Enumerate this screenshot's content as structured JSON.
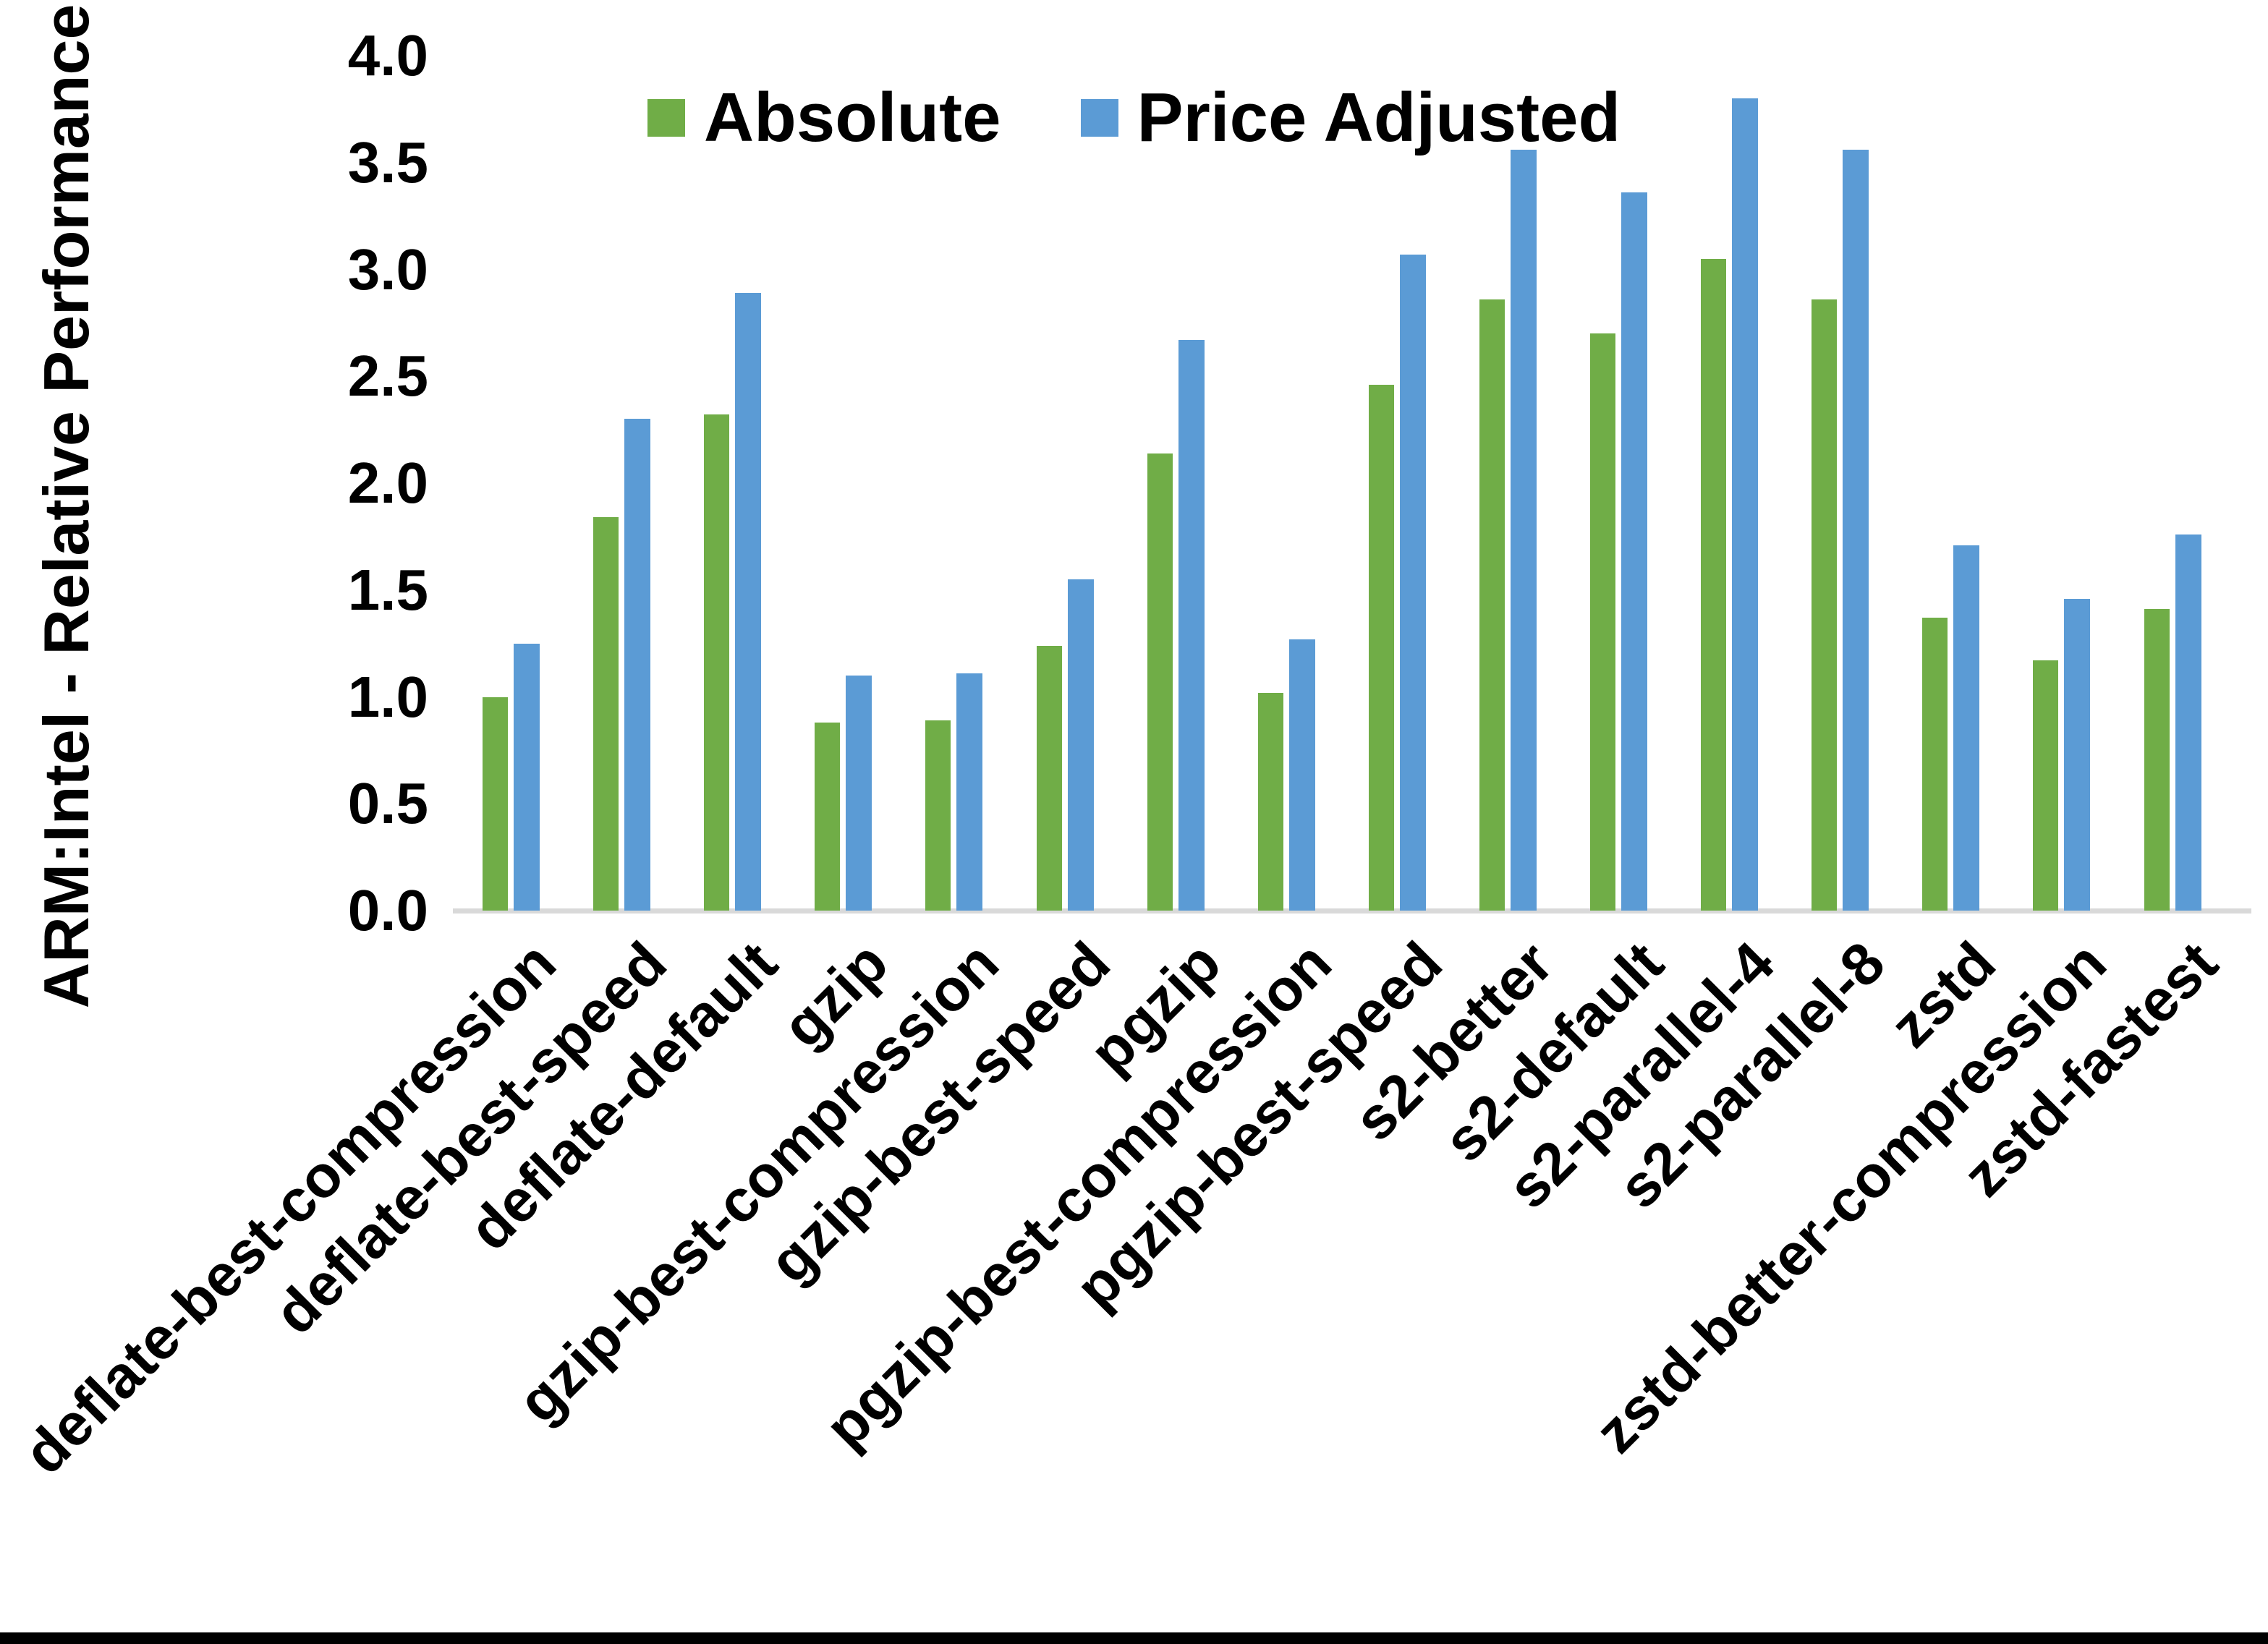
{
  "chart_data": {
    "type": "bar",
    "title": "",
    "xlabel": "",
    "ylabel": "ARM:Intel - Relative Performance",
    "ylim": [
      0.0,
      4.0
    ],
    "ytick_labels": [
      "0.0",
      "0.5",
      "1.0",
      "1.5",
      "2.0",
      "2.5",
      "3.0",
      "3.5",
      "4.0"
    ],
    "grid": false,
    "legend_position": "top-center",
    "categories": [
      "deflate-best-compression",
      "deflate-best-speed",
      "deflate-default",
      "gzip",
      "gzip-best-compression",
      "gzip-best-speed",
      "pgzip",
      "pgzip-best-compression",
      "pgzip-best-speed",
      "s2-better",
      "s2-default",
      "s2-parallel-4",
      "s2-parallel-8",
      "zstd",
      "zstd-better-compression",
      "zstd-fastest"
    ],
    "series": [
      {
        "name": "Absolute",
        "color": "#70AD47",
        "values": [
          1.0,
          1.84,
          2.32,
          0.88,
          0.89,
          1.24,
          2.14,
          1.02,
          2.46,
          2.86,
          2.7,
          3.05,
          2.86,
          1.37,
          1.17,
          1.41
        ]
      },
      {
        "name": "Price Adjusted",
        "color": "#5B9BD5",
        "values": [
          1.25,
          2.3,
          2.89,
          1.1,
          1.11,
          1.55,
          2.67,
          1.27,
          3.07,
          3.56,
          3.36,
          3.8,
          3.56,
          1.71,
          1.46,
          1.76
        ]
      }
    ]
  },
  "legend": {
    "items": [
      {
        "label": "Absolute",
        "color": "#70AD47"
      },
      {
        "label": "Price Adjusted",
        "color": "#5B9BD5"
      }
    ]
  },
  "axis": {
    "baseline_color": "#d9d9d9",
    "text_color": "#000000"
  }
}
